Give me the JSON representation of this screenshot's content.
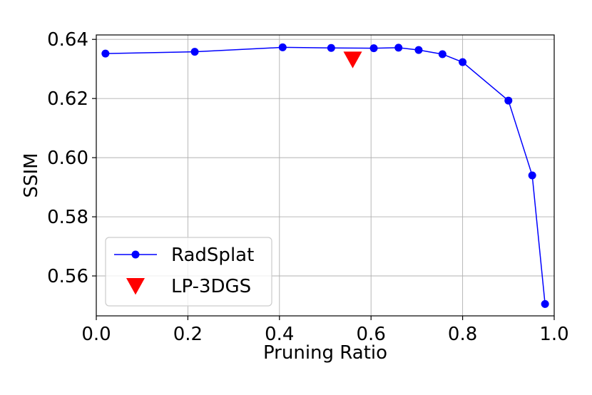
{
  "chart_data": {
    "type": "line",
    "xlabel": "Pruning Ratio",
    "ylabel": "SSIM",
    "xlim": [
      0.0,
      1.0
    ],
    "ylim": [
      0.5465,
      0.6415
    ],
    "xticks": [
      0.0,
      0.2,
      0.4,
      0.6,
      0.8,
      1.0
    ],
    "xtick_labels": [
      "0.0",
      "0.2",
      "0.4",
      "0.6",
      "0.8",
      "1.0"
    ],
    "yticks": [
      0.56,
      0.58,
      0.6,
      0.62,
      0.64
    ],
    "ytick_labels": [
      "0.56",
      "0.58",
      "0.60",
      "0.62",
      "0.64"
    ],
    "grid": true,
    "legend_position": "lower-left",
    "series": [
      {
        "name": "RadSplat",
        "color": "#0000ff",
        "marker": "circle",
        "line": true,
        "x": [
          0.02,
          0.215,
          0.407,
          0.513,
          0.606,
          0.66,
          0.704,
          0.756,
          0.8,
          0.9,
          0.952,
          0.98
        ],
        "y": [
          0.6352,
          0.6358,
          0.6373,
          0.6371,
          0.637,
          0.6372,
          0.6364,
          0.635,
          0.6323,
          0.6193,
          0.594,
          0.5505
        ]
      },
      {
        "name": "LP-3DGS",
        "color": "#ff0000",
        "marker": "triangle-down",
        "line": false,
        "x": [
          0.56
        ],
        "y": [
          0.6332
        ]
      }
    ]
  }
}
